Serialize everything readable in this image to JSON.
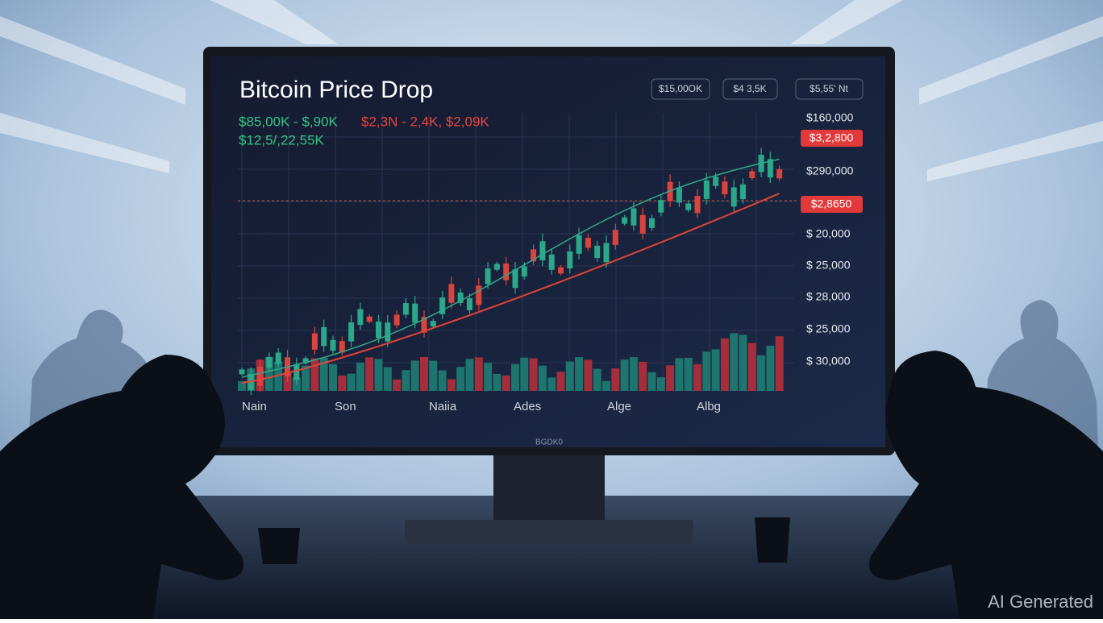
{
  "screen": {
    "title": "Bitcoin Price Drop",
    "buttons": [
      "$15,00OK",
      "$4 3,5K",
      "$5,55' Nt"
    ],
    "summary_green": "$85,00K - $,90K",
    "summary_red": "$2,3N - 2,4K, $2,09K",
    "summary_green_2": "$12,5/,22,55K",
    "price_labels": [
      "$160,000",
      "$290,000",
      "$ 20,000",
      "$ 25,000",
      "$ 28,000",
      "$ 25,000",
      "$ 30,000"
    ],
    "price_tags": [
      "$3,2,800",
      "$2,8650"
    ],
    "time_labels": [
      "Nain",
      "Son",
      "Naiia",
      "Ades",
      "Alge",
      "Albg"
    ]
  },
  "monitor_brand": "BGDK0",
  "watermark": "AI Generated"
}
